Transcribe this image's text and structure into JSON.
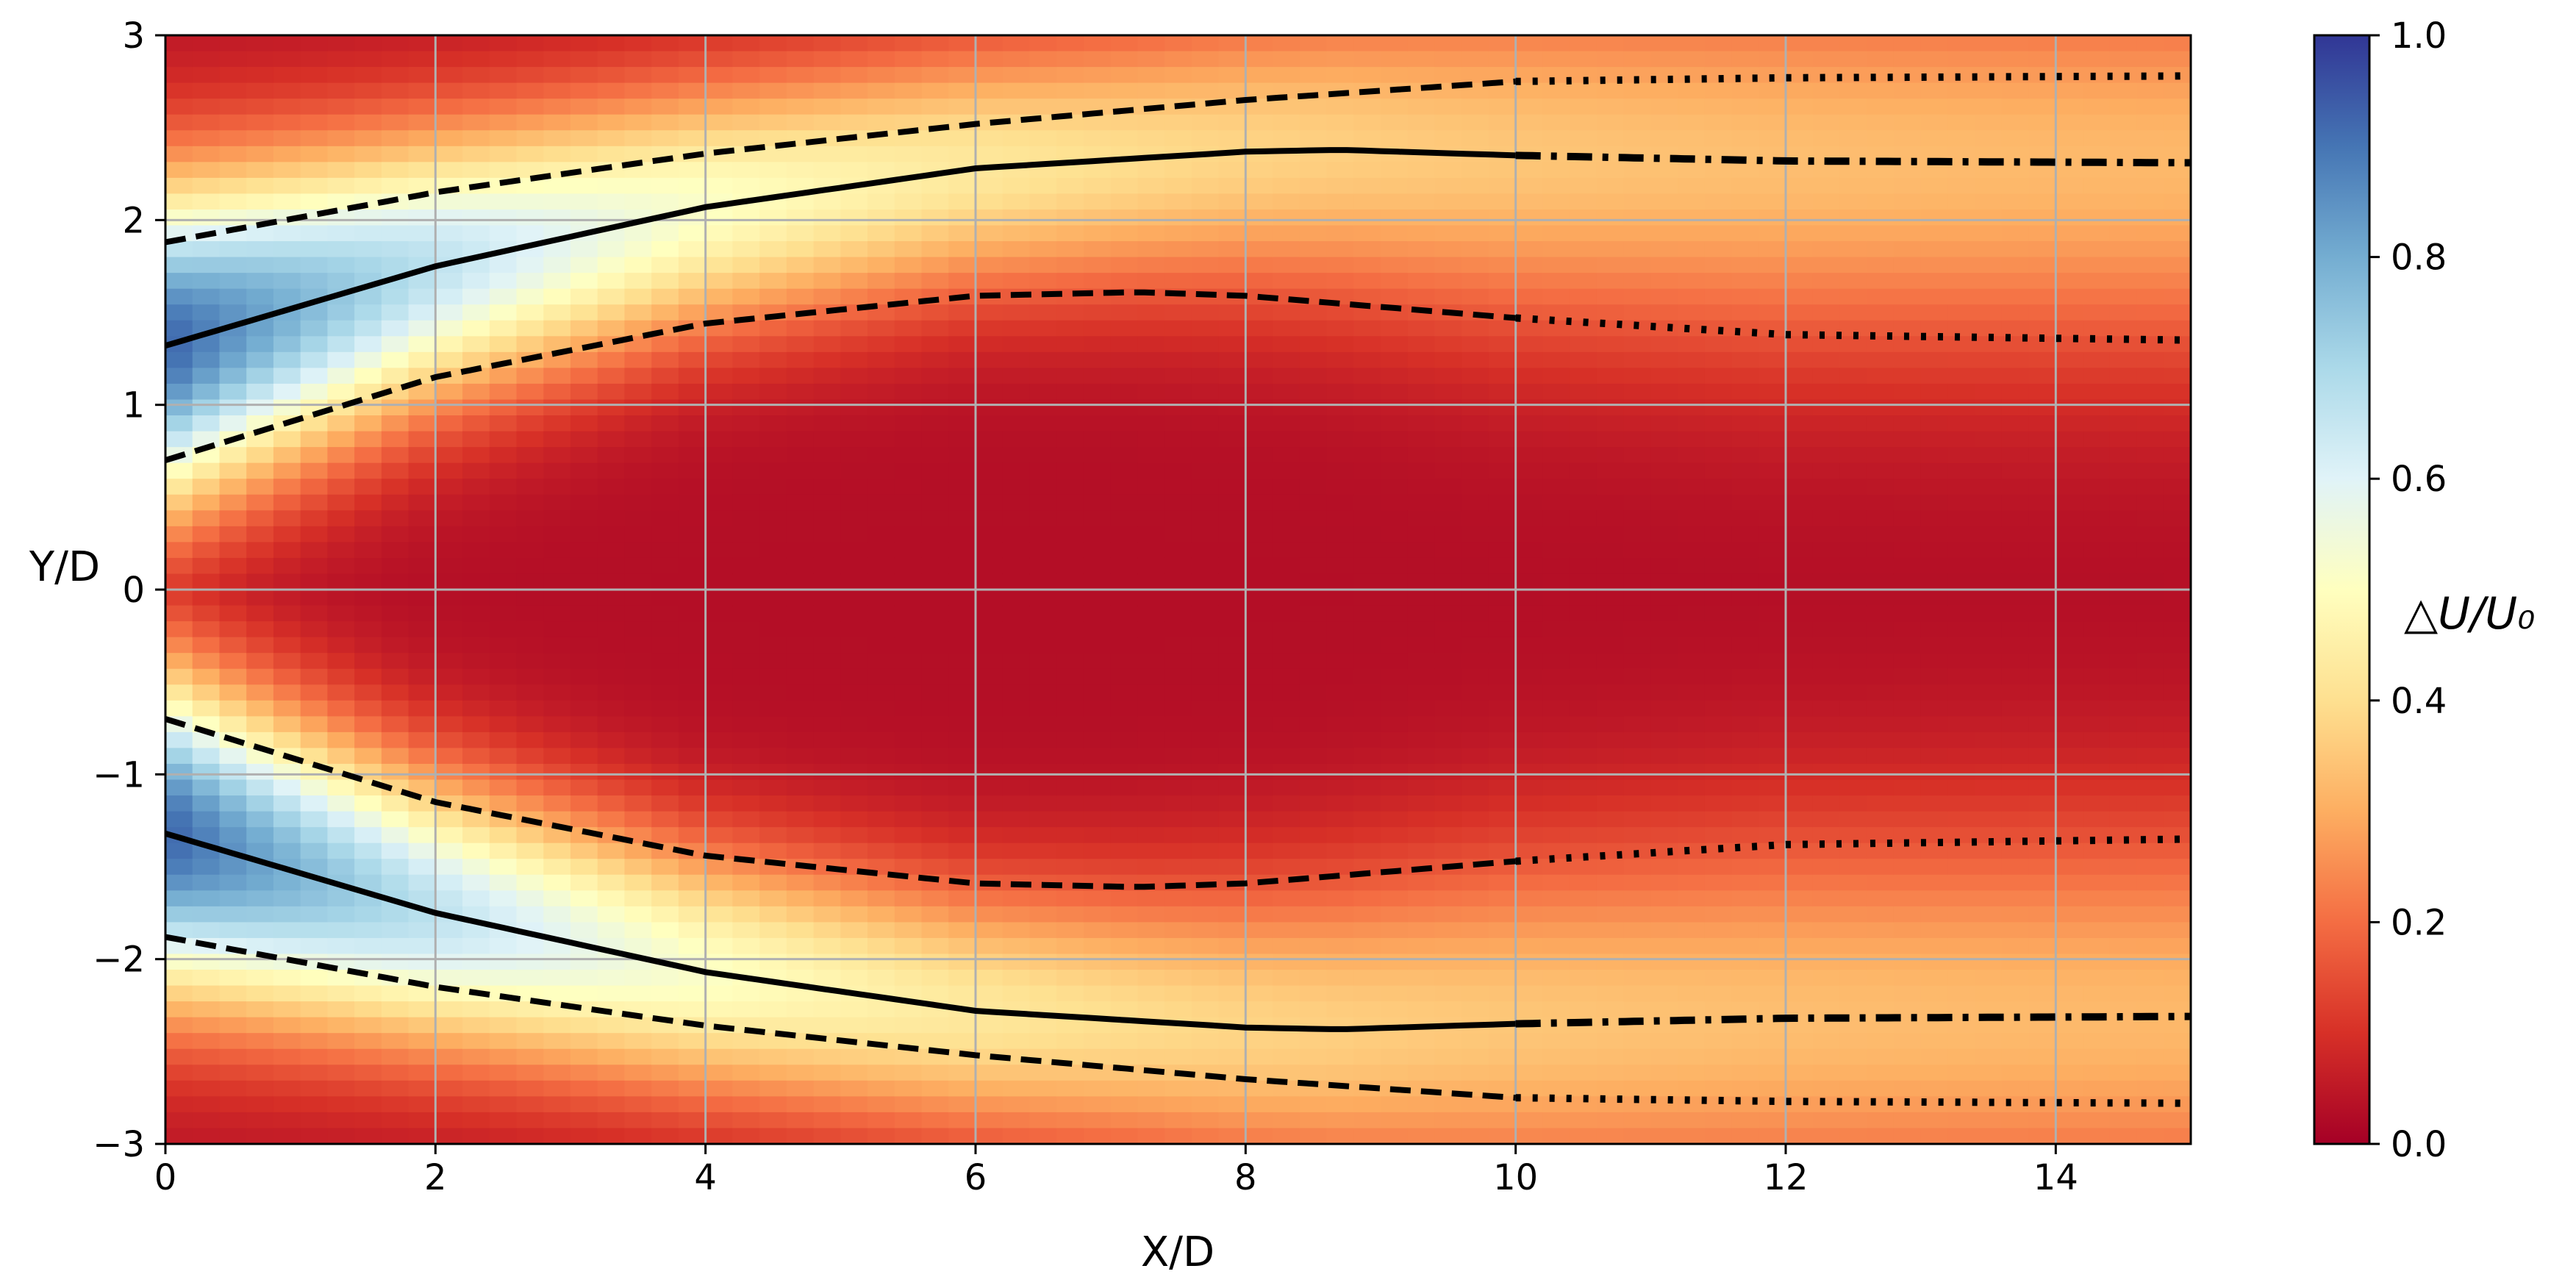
{
  "chart_data": {
    "type": "heatmap",
    "title": "",
    "xlabel": "X/D",
    "ylabel": "Y/D",
    "xlim": [
      0,
      15
    ],
    "ylim": [
      -3,
      3
    ],
    "xticks": [
      0,
      2,
      4,
      6,
      8,
      10,
      12,
      14
    ],
    "xtick_labels": [
      "0",
      "2",
      "4",
      "6",
      "8",
      "10",
      "12",
      "14"
    ],
    "yticks": [
      -3,
      -2,
      -1,
      0,
      1,
      2,
      3
    ],
    "ytick_labels": [
      "−3",
      "−2",
      "−1",
      "0",
      "1",
      "2",
      "3"
    ],
    "grid": true,
    "colormap": "RdYlBu",
    "colorbar": {
      "label": "△U/U₀",
      "range": [
        0.0,
        1.0
      ],
      "ticks": [
        0.0,
        0.2,
        0.4,
        0.6,
        0.8,
        1.0
      ],
      "tick_labels": [
        "0.0",
        "0.2",
        "0.4",
        "0.6",
        "0.8",
        "1.0"
      ]
    },
    "colormap_stops": [
      "#a50026",
      "#d73027",
      "#f46d43",
      "#fdae61",
      "#fee090",
      "#ffffbf",
      "#e0f3f8",
      "#abd9e9",
      "#74add1",
      "#4575b4",
      "#313695"
    ],
    "overlay_lines": [
      {
        "style": "solid",
        "x": [
          0,
          2,
          4,
          6,
          8,
          8.7,
          10
        ],
        "y": [
          1.32,
          1.75,
          2.07,
          2.28,
          2.37,
          2.38,
          2.35
        ]
      },
      {
        "style": "dashdot",
        "x": [
          10,
          12,
          15
        ],
        "y": [
          2.35,
          2.32,
          2.31
        ]
      },
      {
        "style": "dashed",
        "x": [
          0,
          2,
          4,
          6,
          8,
          10
        ],
        "y": [
          1.88,
          2.15,
          2.36,
          2.52,
          2.65,
          2.75
        ]
      },
      {
        "style": "dotted",
        "x": [
          10,
          12,
          15
        ],
        "y": [
          2.75,
          2.77,
          2.78
        ]
      },
      {
        "style": "dashed",
        "x": [
          0,
          2,
          4,
          6,
          7.2,
          8,
          10
        ],
        "y": [
          0.7,
          1.15,
          1.44,
          1.59,
          1.61,
          1.59,
          1.47
        ]
      },
      {
        "style": "dotted",
        "x": [
          10,
          12,
          15
        ],
        "y": [
          1.47,
          1.38,
          1.35
        ]
      },
      {
        "style": "solid",
        "x": [
          0,
          2,
          4,
          6,
          8,
          8.7,
          10
        ],
        "y": [
          -1.32,
          -1.75,
          -2.07,
          -2.28,
          -2.37,
          -2.38,
          -2.35
        ]
      },
      {
        "style": "dashdot",
        "x": [
          10,
          12,
          15
        ],
        "y": [
          -2.35,
          -2.32,
          -2.31
        ]
      },
      {
        "style": "dashed",
        "x": [
          0,
          2,
          4,
          6,
          8,
          10
        ],
        "y": [
          -1.88,
          -2.15,
          -2.36,
          -2.52,
          -2.65,
          -2.75
        ]
      },
      {
        "style": "dotted",
        "x": [
          10,
          12,
          15
        ],
        "y": [
          -2.75,
          -2.77,
          -2.78
        ]
      },
      {
        "style": "dashed",
        "x": [
          0,
          2,
          4,
          6,
          7.2,
          8,
          10
        ],
        "y": [
          -0.7,
          -1.15,
          -1.44,
          -1.59,
          -1.61,
          -1.59,
          -1.47
        ]
      },
      {
        "style": "dotted",
        "x": [
          10,
          12,
          15
        ],
        "y": [
          -1.47,
          -1.38,
          -1.35
        ]
      }
    ]
  }
}
